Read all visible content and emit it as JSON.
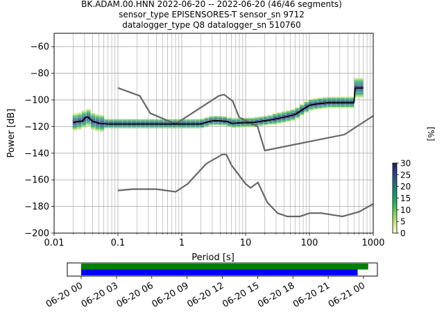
{
  "title_lines": [
    "BK.ADAM.00.HNN   2022-06-20 -- 2022-06-20  (46/46 segments)",
    "sensor_type EPISENSORES-T sensor_sn 9712",
    "datalogger_type Q8 datalogger_sn 510760"
  ],
  "chart_data": {
    "type": "line",
    "xlabel": "Period [s]",
    "ylabel": "Power [dB]",
    "xscale": "log",
    "xlim": [
      0.01,
      1000
    ],
    "ylim": [
      -200,
      -50
    ],
    "grid": true,
    "x_ticks": [
      {
        "value": 0.01,
        "label": "0.01"
      },
      {
        "value": 0.1,
        "label": "0.1"
      },
      {
        "value": 1,
        "label": "1"
      },
      {
        "value": 10,
        "label": "10"
      },
      {
        "value": 100,
        "label": "100"
      },
      {
        "value": 1000,
        "label": "1000"
      }
    ],
    "y_ticks": [
      {
        "value": -60,
        "label": "−60"
      },
      {
        "value": -80,
        "label": "−80"
      },
      {
        "value": -100,
        "label": "−100"
      },
      {
        "value": -120,
        "label": "−120"
      },
      {
        "value": -140,
        "label": "−140"
      },
      {
        "value": -160,
        "label": "−160"
      },
      {
        "value": -180,
        "label": "−180"
      },
      {
        "value": -200,
        "label": "−200"
      }
    ],
    "noise_models": [
      {
        "color": "#666666",
        "points": [
          [
            0.1,
            -91
          ],
          [
            0.22,
            -97
          ],
          [
            0.32,
            -110
          ],
          [
            0.8,
            -118
          ],
          [
            3.8,
            -97
          ],
          [
            4.6,
            -96
          ],
          [
            6.3,
            -101
          ],
          [
            7.9,
            -113
          ],
          [
            15.4,
            -120
          ],
          [
            20,
            -138
          ],
          [
            354.8,
            -126
          ],
          [
            1000,
            -112
          ]
        ]
      },
      {
        "color": "#666666",
        "points": [
          [
            0.1,
            -168
          ],
          [
            0.17,
            -167
          ],
          [
            0.4,
            -167
          ],
          [
            0.8,
            -169
          ],
          [
            1.24,
            -163
          ],
          [
            2.4,
            -148
          ],
          [
            4.3,
            -141
          ],
          [
            5,
            -141
          ],
          [
            6,
            -149
          ],
          [
            10,
            -163
          ],
          [
            12,
            -166
          ],
          [
            15.6,
            -162
          ],
          [
            21.9,
            -177
          ],
          [
            31.6,
            -185
          ],
          [
            45,
            -187.5
          ],
          [
            70.8,
            -187.5
          ],
          [
            101,
            -185
          ],
          [
            154,
            -185
          ],
          [
            328,
            -187.5
          ],
          [
            600,
            -184
          ],
          [
            1000,
            -178
          ]
        ]
      }
    ],
    "mean_curve": {
      "color": "#000000",
      "points": [
        [
          0.02,
          -117
        ],
        [
          0.025,
          -116
        ],
        [
          0.028,
          -116
        ],
        [
          0.031,
          -113
        ],
        [
          0.034,
          -113
        ],
        [
          0.04,
          -116
        ],
        [
          0.05,
          -117.5
        ],
        [
          0.07,
          -118
        ],
        [
          0.1,
          -118
        ],
        [
          0.2,
          -118
        ],
        [
          0.5,
          -118
        ],
        [
          1,
          -118
        ],
        [
          2,
          -118
        ],
        [
          2.8,
          -116
        ],
        [
          3.2,
          -115.5
        ],
        [
          5,
          -116
        ],
        [
          6,
          -117.5
        ],
        [
          10,
          -117
        ],
        [
          13,
          -117
        ],
        [
          18,
          -116
        ],
        [
          25,
          -115
        ],
        [
          40,
          -113
        ],
        [
          60,
          -111
        ],
        [
          80,
          -107
        ],
        [
          100,
          -104
        ],
        [
          130,
          -103
        ],
        [
          200,
          -102
        ],
        [
          350,
          -102
        ],
        [
          500,
          -102
        ],
        [
          520,
          -91
        ],
        [
          700,
          -91
        ]
      ]
    },
    "density_color_stops": [
      "#fffbd3",
      "#cfe98b",
      "#7ecf5e",
      "#27b25a",
      "#208f75",
      "#286a86",
      "#2b4288",
      "#1d1e55"
    ],
    "colorbar": {
      "label": "[%]",
      "range": [
        0,
        30
      ],
      "ticks": [
        {
          "value": 0,
          "label": "0"
        },
        {
          "value": 5,
          "label": "5"
        },
        {
          "value": 10,
          "label": "10"
        },
        {
          "value": 15,
          "label": "15"
        },
        {
          "value": 20,
          "label": "20"
        },
        {
          "value": 25,
          "label": "25"
        },
        {
          "value": 30,
          "label": "30"
        }
      ]
    },
    "coverage": {
      "tick_labels": [
        "06-20 00",
        "06-20 03",
        "06-20 06",
        "06-20 09",
        "06-20 12",
        "06-20 15",
        "06-20 18",
        "06-20 21",
        "06-21 00"
      ],
      "bars": [
        {
          "color": "#008000",
          "start_h": 0.0,
          "end_h": 24.4
        },
        {
          "color": "#0000ff",
          "start_h": 0.0,
          "end_h": 23.5
        }
      ]
    }
  }
}
